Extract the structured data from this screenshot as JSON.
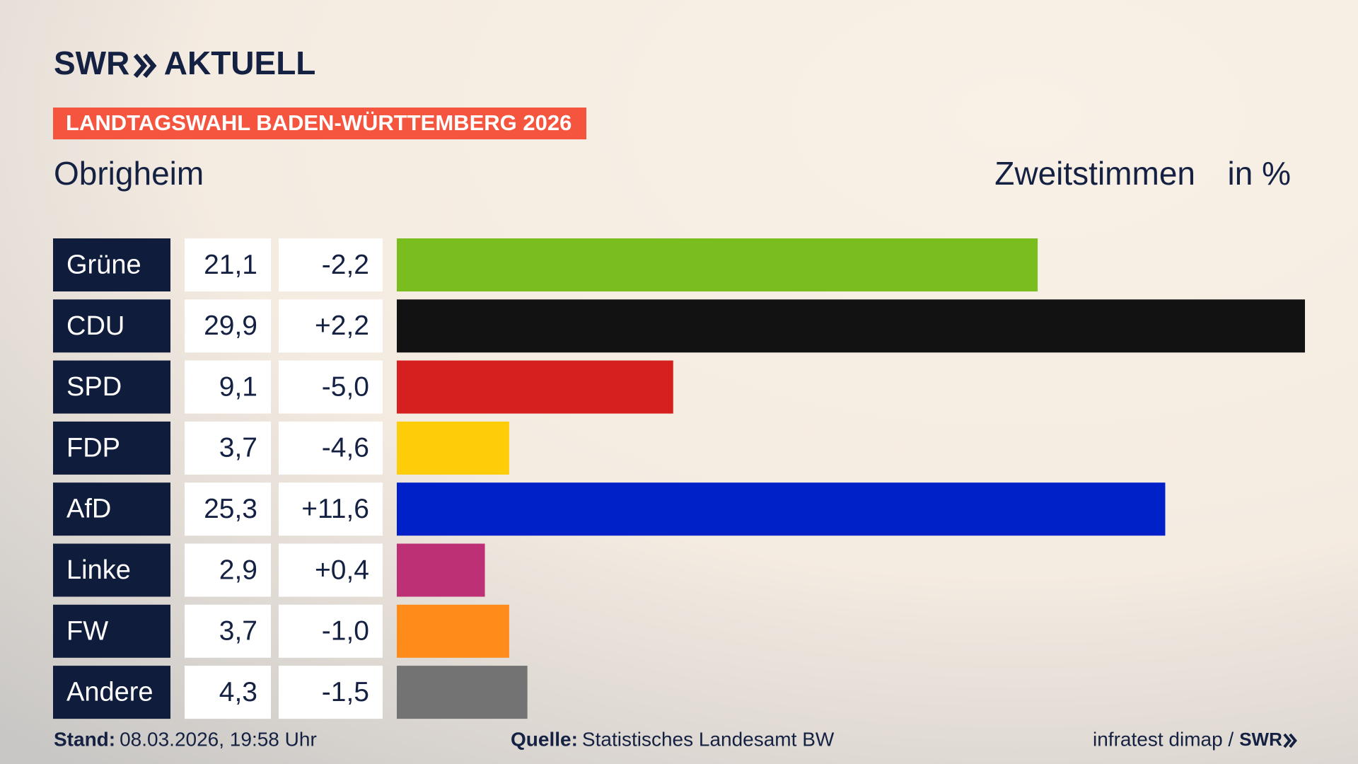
{
  "logo": {
    "brand": "SWR",
    "product": "AKTUELL"
  },
  "chart_data": {
    "type": "bar",
    "banner": "LANDTAGSWAHL BADEN-WÜRTTEMBERG 2026",
    "title": "Obrigheim",
    "value_header": "Zweitstimmen",
    "unit_header": "in %",
    "categories": [
      "Grüne",
      "CDU",
      "SPD",
      "FDP",
      "AfD",
      "Linke",
      "FW",
      "Andere"
    ],
    "values": [
      21.1,
      29.9,
      9.1,
      3.7,
      25.3,
      2.9,
      3.7,
      4.3
    ],
    "value_labels": [
      "21,1",
      "29,9",
      "9,1",
      "3,7",
      "25,3",
      "2,9",
      "3,7",
      "4,3"
    ],
    "changes": [
      -2.2,
      2.2,
      -5.0,
      -4.6,
      11.6,
      0.4,
      -1.0,
      -1.5
    ],
    "change_labels": [
      "-2,2",
      "+2,2",
      "-5,0",
      "-4,6",
      "+11,6",
      "+0,4",
      "-1,0",
      "-1,5"
    ],
    "colors": [
      "#7abd1e",
      "#121212",
      "#d5201f",
      "#ffcc0a",
      "#0020c8",
      "#bd3075",
      "#ff8c1a",
      "#737373"
    ]
  },
  "footer": {
    "stand_label": "Stand:",
    "stand": "08.03.2026, 19:58 Uhr",
    "source_label": "Quelle:",
    "source": "Statistisches Landesamt BW",
    "credit": "infratest dimap /",
    "credit_logo": "SWR"
  }
}
